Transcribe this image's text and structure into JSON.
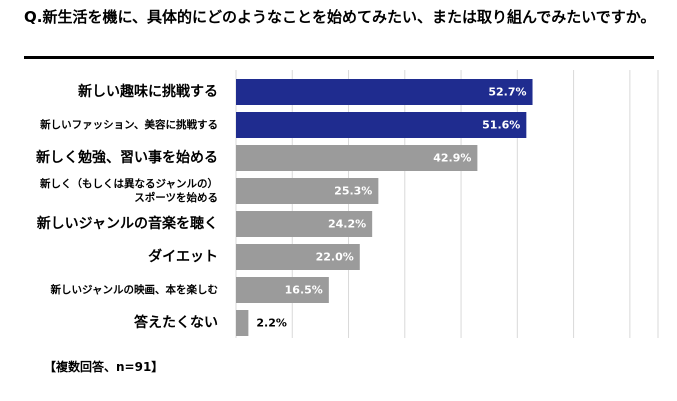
{
  "title": "Q.新生活を機に、具体的にどのようなことを始めてみたい、または取り組んでみたいですか。",
  "note": "【複数回答、n=91】",
  "colors": {
    "highlight": "#1f2c8f",
    "default": "#9b9b9b",
    "grid": "#d9d9d9"
  },
  "chart_data": {
    "type": "bar",
    "orientation": "horizontal",
    "title": "Q.新生活を機に、具体的にどのようなことを始めてみたい、または取り組んでみたいですか。",
    "xlim": [
      0,
      75
    ],
    "grid": true,
    "highlight_top_n": 2,
    "value_suffix": "%",
    "categories": [
      [
        "新しい趣味に挑戦する"
      ],
      [
        "新しいファッション、美容に挑戦する"
      ],
      [
        "新しく勉強、習い事を始める"
      ],
      [
        "新しく（もしくは異なるジャンルの）",
        "スポーツを始める"
      ],
      [
        "新しいジャンルの音楽を聴く"
      ],
      [
        "ダイエット"
      ],
      [
        "新しいジャンルの映画、本を楽しむ"
      ],
      [
        "答えたくない"
      ]
    ],
    "values": [
      52.7,
      51.6,
      42.9,
      25.3,
      24.2,
      22.0,
      16.5,
      2.2
    ],
    "value_labels": [
      "52.7%",
      "51.6%",
      "42.9%",
      "25.3%",
      "24.2%",
      "22.0%",
      "16.5%",
      "2.2%"
    ]
  }
}
